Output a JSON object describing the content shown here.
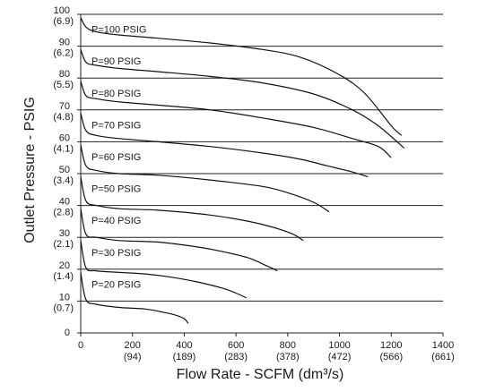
{
  "chart_data": {
    "type": "line",
    "xlabel": "Flow Rate - SCFM (dm³/s)",
    "ylabel": "Outlet Pressure - PSIG",
    "xlim": [
      0,
      1400
    ],
    "ylim": [
      0,
      100
    ],
    "grid": "horizontal",
    "x_ticks": [
      {
        "value": 0,
        "label": "0",
        "sublabel": ""
      },
      {
        "value": 200,
        "label": "200",
        "sublabel": "(94)"
      },
      {
        "value": 400,
        "label": "400",
        "sublabel": "(189)"
      },
      {
        "value": 600,
        "label": "600",
        "sublabel": "(283)"
      },
      {
        "value": 800,
        "label": "800",
        "sublabel": "(378)"
      },
      {
        "value": 1000,
        "label": "1000",
        "sublabel": "(472)"
      },
      {
        "value": 1200,
        "label": "1200",
        "sublabel": "(566)"
      },
      {
        "value": 1400,
        "label": "1400",
        "sublabel": "(661)"
      }
    ],
    "y_ticks": [
      {
        "value": 0,
        "label": "0",
        "sublabel": ""
      },
      {
        "value": 10,
        "label": "10",
        "sublabel": "(0.7)"
      },
      {
        "value": 20,
        "label": "20",
        "sublabel": "(1.4)"
      },
      {
        "value": 30,
        "label": "30",
        "sublabel": "(2.1)"
      },
      {
        "value": 40,
        "label": "40",
        "sublabel": "(2.8)"
      },
      {
        "value": 50,
        "label": "50",
        "sublabel": "(3.4)"
      },
      {
        "value": 60,
        "label": "60",
        "sublabel": "(4.1)"
      },
      {
        "value": 70,
        "label": "70",
        "sublabel": "(4.8)"
      },
      {
        "value": 80,
        "label": "80",
        "sublabel": "(5.5)"
      },
      {
        "value": 90,
        "label": "90",
        "sublabel": "(6.2)"
      },
      {
        "value": 100,
        "label": "100",
        "sublabel": "(6.9)"
      }
    ],
    "series": [
      {
        "name": "P=100 PSIG",
        "x": [
          0,
          20,
          60,
          150,
          300,
          500,
          700,
          850,
          1000,
          1100,
          1200,
          1240
        ],
        "y": [
          99,
          96,
          94.5,
          93.5,
          92.5,
          91,
          89,
          86.5,
          81,
          75,
          65,
          62
        ]
      },
      {
        "name": "P=90 PSIG",
        "x": [
          0,
          20,
          60,
          150,
          300,
          500,
          700,
          900,
          1050,
          1150,
          1250
        ],
        "y": [
          89,
          85,
          84,
          83,
          82,
          80.5,
          78.5,
          75,
          70,
          65,
          58
        ]
      },
      {
        "name": "P=80 PSIG",
        "x": [
          0,
          20,
          60,
          150,
          300,
          500,
          700,
          900,
          1050,
          1150,
          1200
        ],
        "y": [
          79,
          74.5,
          73.5,
          72.5,
          71.5,
          70,
          67.5,
          64.5,
          61,
          58.5,
          55
        ]
      },
      {
        "name": "P=70 PSIG",
        "x": [
          0,
          20,
          60,
          150,
          300,
          500,
          700,
          850,
          950,
          1050,
          1110
        ],
        "y": [
          69,
          63.5,
          62,
          61,
          60,
          58.5,
          56.5,
          54.5,
          52.5,
          50.5,
          49
        ]
      },
      {
        "name": "P=60 PSIG",
        "x": [
          0,
          20,
          60,
          150,
          300,
          500,
          700,
          800,
          900,
          960
        ],
        "y": [
          59,
          52.5,
          51,
          50,
          49.5,
          48,
          46,
          44,
          41,
          38
        ]
      },
      {
        "name": "P=50 PSIG",
        "x": [
          0,
          20,
          60,
          150,
          300,
          500,
          650,
          750,
          820,
          860
        ],
        "y": [
          49,
          41.5,
          40,
          39,
          38.5,
          37,
          35,
          33,
          31,
          29
        ]
      },
      {
        "name": "P=40 PSIG",
        "x": [
          0,
          20,
          60,
          150,
          300,
          450,
          550,
          650,
          720,
          760
        ],
        "y": [
          39,
          31,
          30,
          29,
          28.5,
          27,
          25.5,
          23.5,
          21,
          19.5
        ]
      },
      {
        "name": "P=30 PSIG",
        "x": [
          0,
          20,
          60,
          150,
          250,
          350,
          450,
          550,
          600,
          640
        ],
        "y": [
          29,
          20.5,
          19.5,
          19,
          18.5,
          17.5,
          16,
          14,
          12.5,
          11
        ]
      },
      {
        "name": "P=20 PSIG",
        "x": [
          0,
          20,
          60,
          150,
          250,
          320,
          370,
          400,
          415
        ],
        "y": [
          19,
          10.5,
          9,
          8,
          7.5,
          6.5,
          5.5,
          4.5,
          3
        ]
      }
    ]
  }
}
